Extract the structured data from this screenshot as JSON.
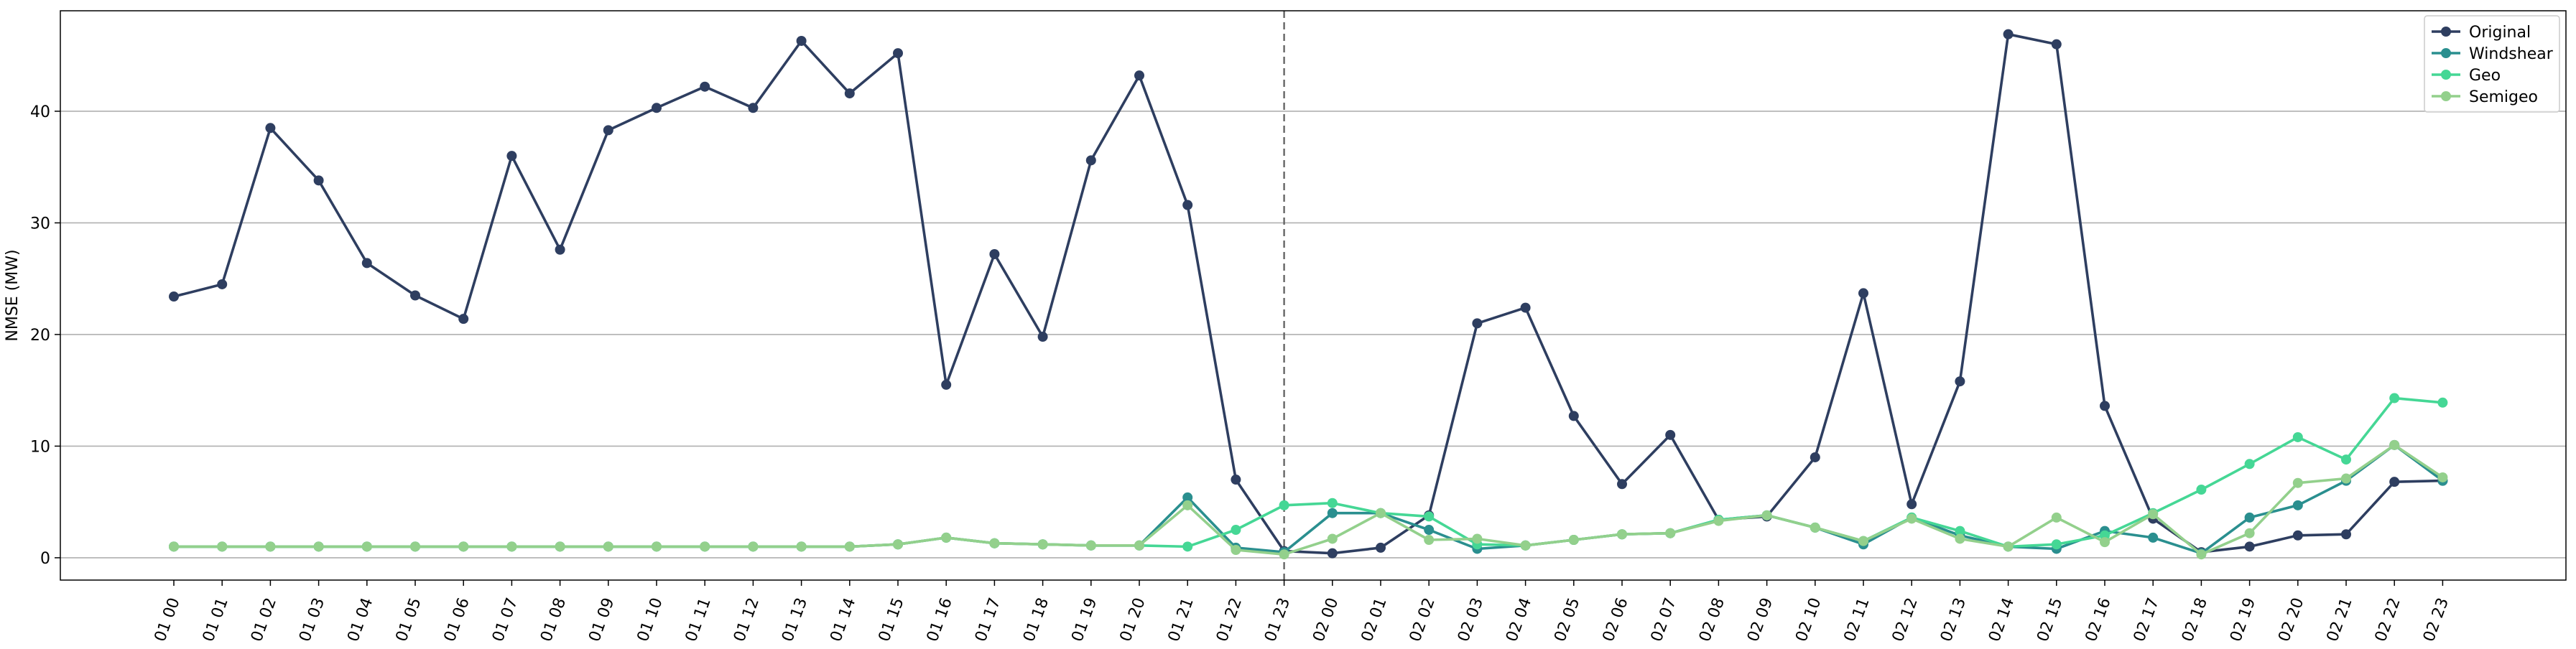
{
  "chart_data": {
    "type": "line",
    "title": "",
    "xlabel": "",
    "ylabel": "NMSE (MW)",
    "ylim": [
      -2,
      49
    ],
    "yticks": [
      0,
      10,
      20,
      30,
      40
    ],
    "grid": "horizontal",
    "legend": "top-right",
    "vline_at": "01 23",
    "x": [
      "01 00",
      "01 01",
      "01 02",
      "01 03",
      "01 04",
      "01 05",
      "01 06",
      "01 07",
      "01 08",
      "01 09",
      "01 10",
      "01 11",
      "01 12",
      "01 13",
      "01 14",
      "01 15",
      "01 16",
      "01 17",
      "01 18",
      "01 19",
      "01 20",
      "01 21",
      "01 22",
      "01 23",
      "02 00",
      "02 01",
      "02 02",
      "02 03",
      "02 04",
      "02 05",
      "02 06",
      "02 07",
      "02 08",
      "02 09",
      "02 10",
      "02 11",
      "02 12",
      "02 13",
      "02 14",
      "02 15",
      "02 16",
      "02 17",
      "02 18",
      "02 19",
      "02 20",
      "02 21",
      "02 22",
      "02 23"
    ],
    "series": [
      {
        "name": "Original",
        "color": "#2e3e60",
        "values": [
          23.4,
          24.5,
          38.5,
          33.8,
          26.4,
          23.5,
          21.4,
          36.0,
          27.6,
          38.3,
          40.3,
          42.2,
          40.3,
          46.3,
          41.6,
          45.2,
          15.5,
          27.2,
          19.8,
          35.6,
          43.2,
          31.6,
          7.0,
          0.6,
          0.4,
          0.9,
          3.8,
          21.0,
          22.4,
          12.7,
          6.6,
          11.0,
          3.4,
          3.7,
          9.0,
          23.7,
          4.8,
          15.8,
          46.9,
          46.0,
          13.6,
          3.5,
          0.5,
          1.0,
          2.0,
          2.1,
          6.8,
          6.9
        ]
      },
      {
        "name": "Windshear",
        "color": "#2a8f8f",
        "values": [
          1.0,
          1.0,
          1.0,
          1.0,
          1.0,
          1.0,
          1.0,
          1.0,
          1.0,
          1.0,
          1.0,
          1.0,
          1.0,
          1.0,
          1.0,
          1.2,
          1.8,
          1.3,
          1.2,
          1.1,
          1.1,
          5.4,
          0.9,
          0.5,
          4.0,
          4.0,
          2.5,
          0.8,
          1.1,
          1.6,
          2.1,
          2.2,
          3.4,
          3.8,
          2.7,
          1.2,
          3.6,
          2.0,
          1.0,
          0.8,
          2.4,
          1.8,
          0.4,
          3.6,
          4.7,
          6.9,
          10.1,
          6.9
        ]
      },
      {
        "name": "Geo",
        "color": "#45d795",
        "values": [
          1.0,
          1.0,
          1.0,
          1.0,
          1.0,
          1.0,
          1.0,
          1.0,
          1.0,
          1.0,
          1.0,
          1.0,
          1.0,
          1.0,
          1.0,
          1.2,
          1.8,
          1.3,
          1.2,
          1.1,
          1.1,
          1.0,
          2.5,
          4.7,
          4.9,
          4.0,
          3.7,
          1.2,
          1.1,
          1.6,
          2.1,
          2.2,
          3.4,
          3.8,
          2.7,
          1.5,
          3.6,
          2.4,
          1.0,
          1.2,
          2.0,
          4.0,
          6.1,
          8.4,
          10.8,
          8.8,
          14.3,
          13.9
        ]
      },
      {
        "name": "Semigeo",
        "color": "#93d08c",
        "values": [
          1.0,
          1.0,
          1.0,
          1.0,
          1.0,
          1.0,
          1.0,
          1.0,
          1.0,
          1.0,
          1.0,
          1.0,
          1.0,
          1.0,
          1.0,
          1.2,
          1.8,
          1.3,
          1.2,
          1.1,
          1.1,
          4.7,
          0.7,
          0.3,
          1.7,
          4.0,
          1.6,
          1.7,
          1.1,
          1.6,
          2.1,
          2.2,
          3.3,
          3.8,
          2.7,
          1.5,
          3.5,
          1.7,
          1.0,
          3.6,
          1.4,
          3.9,
          0.3,
          2.2,
          6.7,
          7.1,
          10.1,
          7.2
        ]
      }
    ]
  }
}
